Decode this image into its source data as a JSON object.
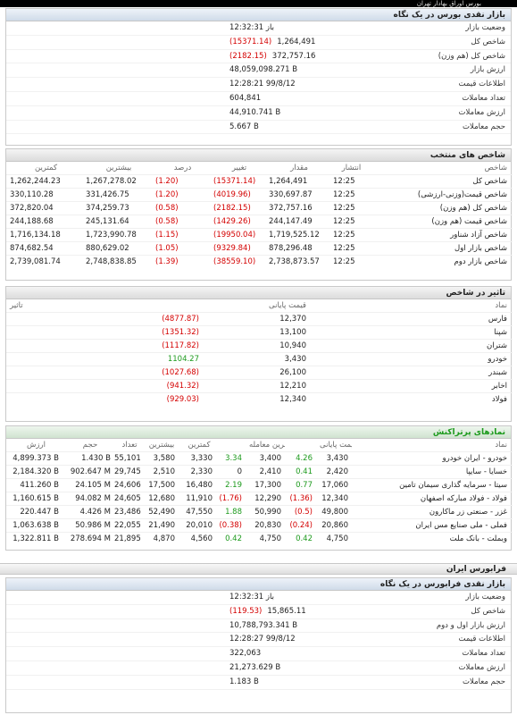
{
  "header": {
    "title": "بورس اوراق بهادار تهران"
  },
  "market_glance": {
    "title": "بازار نقدی بورس در یک نگاه",
    "rows": [
      {
        "label": "وضعیت بازار",
        "value": "باز 12:32:31",
        "neg": ""
      },
      {
        "label": "شاخص کل",
        "value": "1,264,491",
        "neg": "(15371.14)"
      },
      {
        "label": "شاخص کل (هم وزن)",
        "value": "372,757.16",
        "neg": "(2182.15)"
      },
      {
        "label": "ارزش بازار",
        "value": "48,059,098.271 B",
        "neg": ""
      },
      {
        "label": "اطلاعات قیمت",
        "value": "12:28:21 99/8/12",
        "neg": ""
      },
      {
        "label": "تعداد معاملات",
        "value": "604,841",
        "neg": ""
      },
      {
        "label": "ارزش معاملات",
        "value": "44,910.741 B",
        "neg": ""
      },
      {
        "label": "حجم معاملات",
        "value": "5.667 B",
        "neg": ""
      }
    ]
  },
  "selected_indices": {
    "title": "شاخص های منتخب",
    "columns": [
      "شاخص",
      "انتشار",
      "مقدار",
      "تغییر",
      "درصد",
      "بیشترین",
      "کمترین"
    ],
    "rows": [
      [
        "شاخص کل",
        "12:25",
        "1,264,491",
        "(15371.14)",
        "(1.20)",
        "1,267,278.02",
        "1,262,244.23"
      ],
      [
        "شاخص قیمت(وزنی-ارزشی)",
        "12:25",
        "330,697.87",
        "(4019.96)",
        "(1.20)",
        "331,426.75",
        "330,110.28"
      ],
      [
        "شاخص کل (هم وزن)",
        "12:25",
        "372,757.16",
        "(2182.15)",
        "(0.58)",
        "374,259.73",
        "372,820.04"
      ],
      [
        "شاخص قیمت (هم وزن)",
        "12:25",
        "244,147.49",
        "(1429.26)",
        "(0.58)",
        "245,131.64",
        "244,188.68"
      ],
      [
        "شاخص آزاد شناور",
        "12:25",
        "1,719,525.12",
        "(19950.04)",
        "(1.15)",
        "1,723,990.78",
        "1,716,134.18"
      ],
      [
        "شاخص بازار اول",
        "12:25",
        "878,296.48",
        "(9329.84)",
        "(1.05)",
        "880,629.02",
        "874,682.54"
      ],
      [
        "شاخص بازار دوم",
        "12:25",
        "2,738,873.57",
        "(38559.10)",
        "(1.39)",
        "2,748,838.85",
        "2,739,081.74"
      ]
    ]
  },
  "index_impact": {
    "title": "تاثیر در شاخص",
    "columns": [
      "نماد",
      "قیمت پایانی",
      "تاثیر"
    ],
    "rows": [
      [
        "فارس",
        "12,370",
        "(4877.87)",
        "neg"
      ],
      [
        "شپنا",
        "13,100",
        "(1351.32)",
        "neg"
      ],
      [
        "شتران",
        "10,940",
        "(1117.82)",
        "neg"
      ],
      [
        "خودرو",
        "3,430",
        "1104.27",
        "pos"
      ],
      [
        "شبندر",
        "26,100",
        "(1027.68)",
        "neg"
      ],
      [
        "اخابر",
        "12,210",
        "(941.32)",
        "neg"
      ],
      [
        "فولاد",
        "12,340",
        "(929.03)",
        "neg"
      ]
    ]
  },
  "most_traded": {
    "title": "نمادهای پرتراکنش",
    "columns": [
      "نماد",
      "قیمت پایانی",
      "",
      "آخرین معامله",
      "",
      "کمترین",
      "بیشترین",
      "تعداد",
      "حجم",
      "ارزش"
    ],
    "rows": [
      {
        "name": "خودرو - ایران خودرو",
        "close": "3,430",
        "close_chg": "4.26",
        "close_dir": "pos",
        "last": "3,400",
        "last_chg": "3.34",
        "last_dir": "pos",
        "low": "3,330",
        "high": "3,580",
        "count": "55,101",
        "volume": "1.430 B",
        "value": "4,899.373 B"
      },
      {
        "name": "خسایا - سایپا",
        "close": "2,420",
        "close_chg": "0.41",
        "close_dir": "pos",
        "last": "2,410",
        "last_chg": "0",
        "last_dir": "zero",
        "low": "2,330",
        "high": "2,510",
        "count": "29,745",
        "volume": "902.647 M",
        "value": "2,184.320 B"
      },
      {
        "name": "سیتا - سرمایه گذاری سیمان تامین",
        "close": "17,060",
        "close_chg": "0.77",
        "close_dir": "pos",
        "last": "17,300",
        "last_chg": "2.19",
        "last_dir": "pos",
        "low": "16,480",
        "high": "17,500",
        "count": "24,606",
        "volume": "24.105 M",
        "value": "411.260 B"
      },
      {
        "name": "فولاد - فولاد مبارکه اصفهان",
        "close": "12,340",
        "close_chg": "(1.36)",
        "close_dir": "neg",
        "last": "12,290",
        "last_chg": "(1.76)",
        "last_dir": "neg",
        "low": "11,910",
        "high": "12,680",
        "count": "24,605",
        "volume": "94.082 M",
        "value": "1,160.615 B"
      },
      {
        "name": "غزر - صنعتی زر ماکارون",
        "close": "49,800",
        "close_chg": "(0.5)",
        "close_dir": "neg",
        "last": "50,990",
        "last_chg": "1.88",
        "last_dir": "pos",
        "low": "47,550",
        "high": "52,490",
        "count": "23,486",
        "volume": "4.426 M",
        "value": "220.447 B"
      },
      {
        "name": "فملی - ملی صنایع مس ایران",
        "close": "20,860",
        "close_chg": "(0.24)",
        "close_dir": "neg",
        "last": "20,830",
        "last_chg": "(0.38)",
        "last_dir": "neg",
        "low": "20,010",
        "high": "21,490",
        "count": "22,055",
        "volume": "50.986 M",
        "value": "1,063.638 B"
      },
      {
        "name": "وبملت - بانک ملت",
        "close": "4,750",
        "close_chg": "0.42",
        "close_dir": "pos",
        "last": "4,750",
        "last_chg": "0.42",
        "last_dir": "pos",
        "low": "4,560",
        "high": "4,870",
        "count": "21,895",
        "volume": "278.694 M",
        "value": "1,322.811 B"
      }
    ]
  },
  "farabourse": {
    "ribbon": "فرابورس ایران",
    "title": "بازار نقدی فرابورس در یک نگاه",
    "rows": [
      {
        "label": "وضعیت بازار",
        "value": "باز 12:32:31",
        "neg": ""
      },
      {
        "label": "شاخص کل",
        "value": "15,865.11",
        "neg": "(119.53)"
      },
      {
        "label": "ارزش بازار اول و دوم",
        "value": "10,788,793.341 B",
        "neg": ""
      },
      {
        "label": "اطلاعات قیمت",
        "value": "12:28:27 99/8/12",
        "neg": ""
      },
      {
        "label": "تعداد معاملات",
        "value": "322,063",
        "neg": ""
      },
      {
        "label": "ارزش معاملات",
        "value": "21,273.629 B",
        "neg": ""
      },
      {
        "label": "حجم معاملات",
        "value": "1.183 B",
        "neg": ""
      }
    ]
  },
  "colors": {
    "negative": "#d40000",
    "positive": "#1c9a1c"
  }
}
